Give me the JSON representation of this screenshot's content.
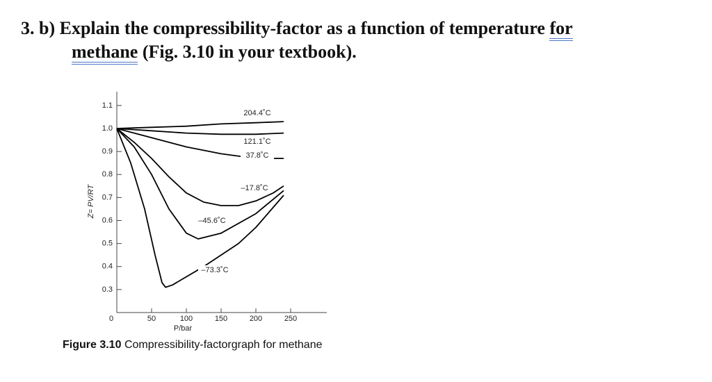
{
  "question": {
    "number": "3.",
    "text": "b) Explain the compressibility-factor as a function of temperature",
    "underlined": [
      "for",
      "methane"
    ],
    "text_after": "(Fig. 3.10 in your textbook)."
  },
  "chart_data": {
    "type": "line",
    "x_label": "P/bar",
    "y_label": "Z= PV/RT",
    "xlim": [
      0,
      300
    ],
    "ylim": [
      0.2,
      1.16
    ],
    "xticks": [
      0,
      50,
      100,
      150,
      200,
      250
    ],
    "yticks": [
      0.3,
      0.4,
      0.5,
      0.6,
      0.7,
      0.8,
      0.9,
      {
        "value": 1,
        "label": "1.0"
      },
      1.1
    ],
    "series": [
      {
        "name": "204.4˚C",
        "color": "#000000",
        "x": [
          0,
          50,
          100,
          150,
          200,
          240
        ],
        "values": [
          1.0,
          1.005,
          1.01,
          1.02,
          1.025,
          1.03
        ]
      },
      {
        "name": "121.1˚C",
        "color": "#000000",
        "x": [
          0,
          50,
          100,
          150,
          200,
          240
        ],
        "values": [
          1.0,
          0.99,
          0.98,
          0.975,
          0.975,
          0.98
        ]
      },
      {
        "name": "37.8˚C",
        "color": "#000000",
        "x": [
          0,
          50,
          100,
          150,
          200,
          240
        ],
        "values": [
          1.0,
          0.96,
          0.92,
          0.89,
          0.87,
          0.87
        ]
      },
      {
        "name": "–17.8˚C",
        "color": "#000000",
        "x": [
          0,
          25,
          50,
          75,
          100,
          125,
          150,
          175,
          200,
          225,
          240
        ],
        "values": [
          1.0,
          0.94,
          0.87,
          0.79,
          0.72,
          0.68,
          0.665,
          0.665,
          0.685,
          0.72,
          0.75
        ]
      },
      {
        "name": "–45.6˚C",
        "color": "#000000",
        "x": [
          0,
          25,
          50,
          75,
          100,
          117,
          150,
          200,
          240
        ],
        "values": [
          1.0,
          0.92,
          0.8,
          0.65,
          0.545,
          0.52,
          0.545,
          0.63,
          0.73
        ]
      },
      {
        "name": "–73.3˚C",
        "color": "#000000",
        "x": [
          0,
          20,
          40,
          55,
          65,
          70,
          80,
          125,
          175,
          200,
          240
        ],
        "values": [
          1.0,
          0.85,
          0.65,
          0.45,
          0.33,
          0.31,
          0.32,
          0.4,
          0.5,
          0.57,
          0.71
        ]
      }
    ]
  },
  "caption": {
    "label": "Figure 3.10",
    "text": "Compressibility-factorgraph for methane"
  }
}
